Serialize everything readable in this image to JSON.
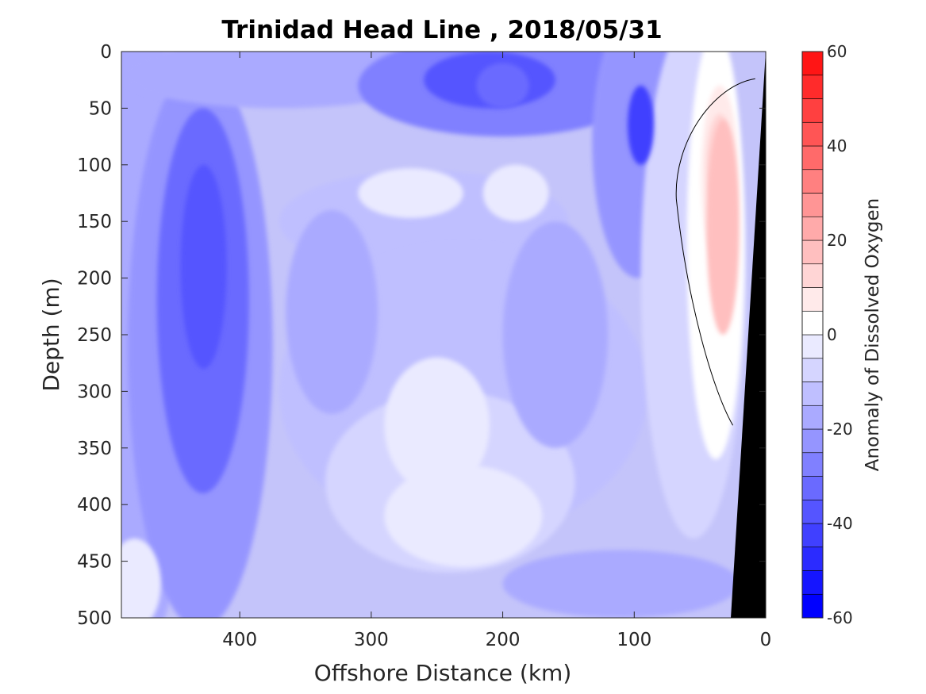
{
  "chart_data": {
    "type": "heatmap",
    "subtype": "filled-contour",
    "title": "Trinidad Head Line , 2018/05/31",
    "xlabel": "Offshore Distance (km)",
    "ylabel": "Depth (m)",
    "xlim": [
      490,
      0
    ],
    "ylim": [
      0,
      500
    ],
    "x_reversed": true,
    "y_reversed": true,
    "xticks": [
      400,
      300,
      200,
      100,
      0
    ],
    "yticks": [
      0,
      50,
      100,
      150,
      200,
      250,
      300,
      350,
      400,
      450,
      500
    ],
    "colorbar": {
      "label": "Anomaly of Dissolved Oxygen",
      "lim": [
        -60,
        60
      ],
      "ticks": [
        60,
        40,
        20,
        0,
        -20,
        -40,
        -60
      ],
      "levels": [
        -60,
        -55,
        -50,
        -45,
        -40,
        -35,
        -30,
        -25,
        -20,
        -15,
        -10,
        -5,
        0,
        5,
        10,
        15,
        20,
        25,
        30,
        35,
        40,
        45,
        50,
        55,
        60
      ],
      "colors": [
        "#0000ff",
        "#1515ff",
        "#2b2bff",
        "#4040ff",
        "#5555ff",
        "#6a6aff",
        "#8080ff",
        "#9595ff",
        "#aaaaff",
        "#bfbfff",
        "#d5d5ff",
        "#eaeaff",
        "#ffffff",
        "#ffeaea",
        "#ffd5d5",
        "#ffbfbf",
        "#ffaaaa",
        "#ff9595",
        "#ff8080",
        "#ff6a6a",
        "#ff5555",
        "#ff4040",
        "#ff2b2b",
        "#ff1515"
      ]
    },
    "features": [
      {
        "name": "low-oxygen-core-offshore",
        "x": [
          445,
          410
        ],
        "depth": [
          100,
          280
        ],
        "anomaly": -40
      },
      {
        "name": "low-oxygen-core-shelf-break",
        "x": [
          105,
          85
        ],
        "depth": [
          30,
          100
        ],
        "anomaly": -45
      },
      {
        "name": "low-oxygen-surface-patch",
        "x": [
          220,
          180
        ],
        "depth": [
          10,
          50
        ],
        "anomaly": -35
      },
      {
        "name": "positive-anomaly-nearshore",
        "x": [
          45,
          20
        ],
        "depth": [
          60,
          250
        ],
        "anomaly": 15
      }
    ],
    "bathymetry_fill_color": "#000000",
    "grid": false,
    "legend": "colorbar-right"
  }
}
